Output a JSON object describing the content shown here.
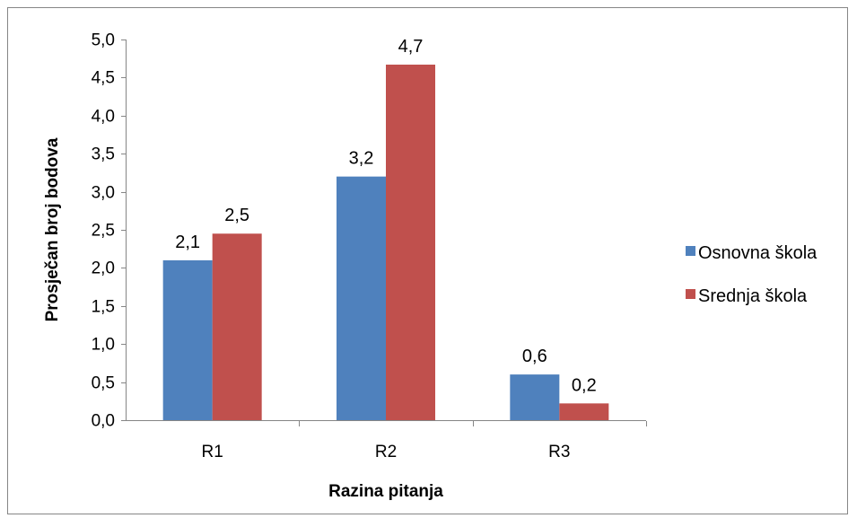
{
  "chart_data": {
    "type": "bar",
    "categories": [
      "R1",
      "R2",
      "R3"
    ],
    "series": [
      {
        "name": "Osnovna škola",
        "values": [
          2.1,
          3.2,
          0.6
        ],
        "labels": [
          "2,1",
          "3,2",
          "0,6"
        ],
        "color": "#4F81BD"
      },
      {
        "name": "Srednja škola",
        "values": [
          2.45,
          4.67,
          0.22
        ],
        "labels": [
          "2,5",
          "4,7",
          "0,2"
        ],
        "color": "#C0504D"
      }
    ],
    "xlabel": "Razina pitanja",
    "ylabel": "Prosječan broj bodova",
    "ylim": [
      0,
      5
    ],
    "yticks": [
      0,
      0.5,
      1,
      1.5,
      2,
      2.5,
      3,
      3.5,
      4,
      4.5,
      5
    ],
    "ytick_labels": [
      "0,0",
      "0,5",
      "1,0",
      "1,5",
      "2,0",
      "2,5",
      "3,0",
      "3,5",
      "4,0",
      "4,5",
      "5,0"
    ],
    "grid": false,
    "legend_position": "right"
  }
}
